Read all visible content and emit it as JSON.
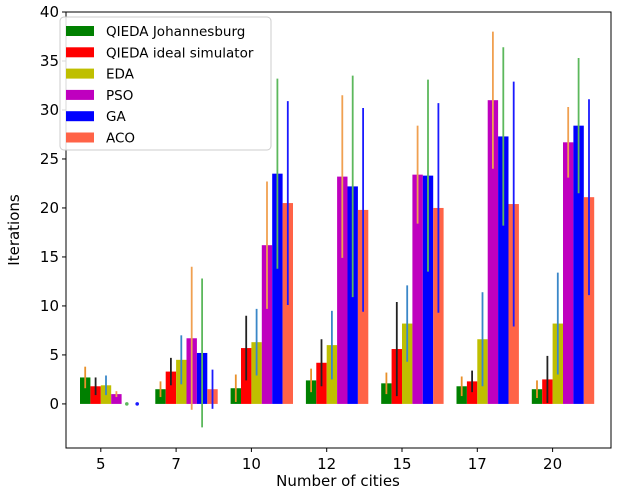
{
  "chart_data": {
    "type": "bar",
    "title": "",
    "xlabel": "Number of cities",
    "ylabel": "Iterations",
    "ylim": [
      -4.5,
      40
    ],
    "yticks": [
      0,
      5,
      10,
      15,
      20,
      25,
      30,
      35,
      40
    ],
    "categories": [
      "5",
      "7",
      "10",
      "12",
      "15",
      "17",
      "20"
    ],
    "legend_position": "top-left",
    "grid": false,
    "series": [
      {
        "name": "QIEDA Johannesburg",
        "color": "#008000",
        "error_color": "#e8902a",
        "values": [
          2.7,
          1.5,
          1.6,
          2.4,
          2.1,
          1.8,
          1.5
        ],
        "errors": [
          1.1,
          0.8,
          1.4,
          1.2,
          1.1,
          1.0,
          0.9
        ]
      },
      {
        "name": "QIEDA ideal simulator",
        "color": "#ff0000",
        "error_color": "#222222",
        "values": [
          1.8,
          3.3,
          5.7,
          4.2,
          5.6,
          2.3,
          2.5
        ],
        "errors": [
          0.9,
          1.4,
          3.3,
          2.4,
          4.8,
          1.1,
          2.4
        ]
      },
      {
        "name": "EDA",
        "color": "#bfbf00",
        "error_color": "#3a87c8",
        "values": [
          1.9,
          4.5,
          6.3,
          6.0,
          8.2,
          6.6,
          8.2
        ],
        "errors": [
          1.0,
          2.5,
          3.4,
          3.5,
          3.9,
          4.8,
          5.2
        ]
      },
      {
        "name": "PSO",
        "color": "#bf00bf",
        "error_color": "#f0a050",
        "values": [
          1.0,
          6.7,
          16.2,
          23.2,
          23.4,
          31.0,
          26.7
        ],
        "errors": [
          0.3,
          7.3,
          6.5,
          8.3,
          5.0,
          7.0,
          3.6
        ]
      },
      {
        "name": "GA",
        "color": "#0000ff",
        "error_color": "#5cb85c",
        "values": [
          0.0,
          5.2,
          23.5,
          22.2,
          23.3,
          27.3,
          28.4
        ],
        "errors": [
          0.0,
          7.6,
          9.7,
          11.3,
          9.8,
          9.1,
          6.9
        ]
      },
      {
        "name": "ACO",
        "color": "#ff6347",
        "error_color": "#1a1aff",
        "values": [
          0.0,
          1.5,
          20.5,
          19.8,
          20.0,
          20.4,
          21.1
        ],
        "errors": [
          0.0,
          2.0,
          10.4,
          10.4,
          10.7,
          12.5,
          10.0
        ]
      }
    ]
  }
}
